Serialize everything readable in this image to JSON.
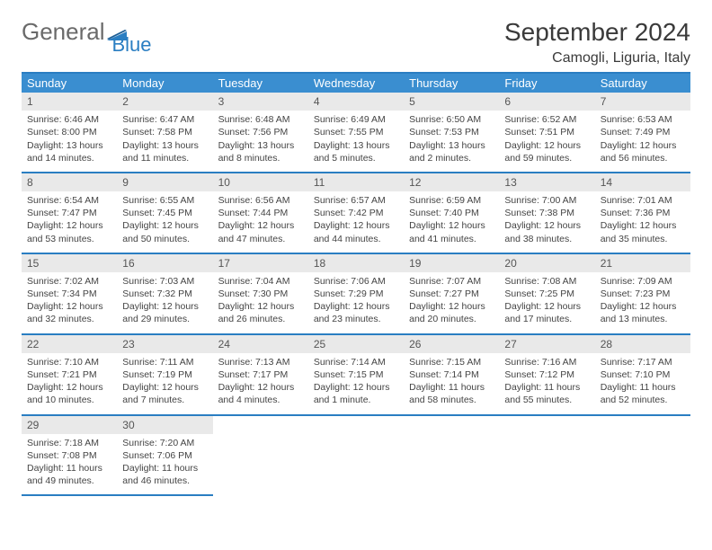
{
  "logo": {
    "text1": "General",
    "text2": "Blue"
  },
  "title": "September 2024",
  "location": "Camogli, Liguria, Italy",
  "colors": {
    "header_bg": "#3a8ed0",
    "header_border": "#2a7ec2",
    "daynum_bg": "#e9e9e9",
    "text": "#333333"
  },
  "dow": [
    "Sunday",
    "Monday",
    "Tuesday",
    "Wednesday",
    "Thursday",
    "Friday",
    "Saturday"
  ],
  "weeks": [
    [
      {
        "n": "1",
        "sr": "Sunrise: 6:46 AM",
        "ss": "Sunset: 8:00 PM",
        "dl": "Daylight: 13 hours and 14 minutes."
      },
      {
        "n": "2",
        "sr": "Sunrise: 6:47 AM",
        "ss": "Sunset: 7:58 PM",
        "dl": "Daylight: 13 hours and 11 minutes."
      },
      {
        "n": "3",
        "sr": "Sunrise: 6:48 AM",
        "ss": "Sunset: 7:56 PM",
        "dl": "Daylight: 13 hours and 8 minutes."
      },
      {
        "n": "4",
        "sr": "Sunrise: 6:49 AM",
        "ss": "Sunset: 7:55 PM",
        "dl": "Daylight: 13 hours and 5 minutes."
      },
      {
        "n": "5",
        "sr": "Sunrise: 6:50 AM",
        "ss": "Sunset: 7:53 PM",
        "dl": "Daylight: 13 hours and 2 minutes."
      },
      {
        "n": "6",
        "sr": "Sunrise: 6:52 AM",
        "ss": "Sunset: 7:51 PM",
        "dl": "Daylight: 12 hours and 59 minutes."
      },
      {
        "n": "7",
        "sr": "Sunrise: 6:53 AM",
        "ss": "Sunset: 7:49 PM",
        "dl": "Daylight: 12 hours and 56 minutes."
      }
    ],
    [
      {
        "n": "8",
        "sr": "Sunrise: 6:54 AM",
        "ss": "Sunset: 7:47 PM",
        "dl": "Daylight: 12 hours and 53 minutes."
      },
      {
        "n": "9",
        "sr": "Sunrise: 6:55 AM",
        "ss": "Sunset: 7:45 PM",
        "dl": "Daylight: 12 hours and 50 minutes."
      },
      {
        "n": "10",
        "sr": "Sunrise: 6:56 AM",
        "ss": "Sunset: 7:44 PM",
        "dl": "Daylight: 12 hours and 47 minutes."
      },
      {
        "n": "11",
        "sr": "Sunrise: 6:57 AM",
        "ss": "Sunset: 7:42 PM",
        "dl": "Daylight: 12 hours and 44 minutes."
      },
      {
        "n": "12",
        "sr": "Sunrise: 6:59 AM",
        "ss": "Sunset: 7:40 PM",
        "dl": "Daylight: 12 hours and 41 minutes."
      },
      {
        "n": "13",
        "sr": "Sunrise: 7:00 AM",
        "ss": "Sunset: 7:38 PM",
        "dl": "Daylight: 12 hours and 38 minutes."
      },
      {
        "n": "14",
        "sr": "Sunrise: 7:01 AM",
        "ss": "Sunset: 7:36 PM",
        "dl": "Daylight: 12 hours and 35 minutes."
      }
    ],
    [
      {
        "n": "15",
        "sr": "Sunrise: 7:02 AM",
        "ss": "Sunset: 7:34 PM",
        "dl": "Daylight: 12 hours and 32 minutes."
      },
      {
        "n": "16",
        "sr": "Sunrise: 7:03 AM",
        "ss": "Sunset: 7:32 PM",
        "dl": "Daylight: 12 hours and 29 minutes."
      },
      {
        "n": "17",
        "sr": "Sunrise: 7:04 AM",
        "ss": "Sunset: 7:30 PM",
        "dl": "Daylight: 12 hours and 26 minutes."
      },
      {
        "n": "18",
        "sr": "Sunrise: 7:06 AM",
        "ss": "Sunset: 7:29 PM",
        "dl": "Daylight: 12 hours and 23 minutes."
      },
      {
        "n": "19",
        "sr": "Sunrise: 7:07 AM",
        "ss": "Sunset: 7:27 PM",
        "dl": "Daylight: 12 hours and 20 minutes."
      },
      {
        "n": "20",
        "sr": "Sunrise: 7:08 AM",
        "ss": "Sunset: 7:25 PM",
        "dl": "Daylight: 12 hours and 17 minutes."
      },
      {
        "n": "21",
        "sr": "Sunrise: 7:09 AM",
        "ss": "Sunset: 7:23 PM",
        "dl": "Daylight: 12 hours and 13 minutes."
      }
    ],
    [
      {
        "n": "22",
        "sr": "Sunrise: 7:10 AM",
        "ss": "Sunset: 7:21 PM",
        "dl": "Daylight: 12 hours and 10 minutes."
      },
      {
        "n": "23",
        "sr": "Sunrise: 7:11 AM",
        "ss": "Sunset: 7:19 PM",
        "dl": "Daylight: 12 hours and 7 minutes."
      },
      {
        "n": "24",
        "sr": "Sunrise: 7:13 AM",
        "ss": "Sunset: 7:17 PM",
        "dl": "Daylight: 12 hours and 4 minutes."
      },
      {
        "n": "25",
        "sr": "Sunrise: 7:14 AM",
        "ss": "Sunset: 7:15 PM",
        "dl": "Daylight: 12 hours and 1 minute."
      },
      {
        "n": "26",
        "sr": "Sunrise: 7:15 AM",
        "ss": "Sunset: 7:14 PM",
        "dl": "Daylight: 11 hours and 58 minutes."
      },
      {
        "n": "27",
        "sr": "Sunrise: 7:16 AM",
        "ss": "Sunset: 7:12 PM",
        "dl": "Daylight: 11 hours and 55 minutes."
      },
      {
        "n": "28",
        "sr": "Sunrise: 7:17 AM",
        "ss": "Sunset: 7:10 PM",
        "dl": "Daylight: 11 hours and 52 minutes."
      }
    ],
    [
      {
        "n": "29",
        "sr": "Sunrise: 7:18 AM",
        "ss": "Sunset: 7:08 PM",
        "dl": "Daylight: 11 hours and 49 minutes."
      },
      {
        "n": "30",
        "sr": "Sunrise: 7:20 AM",
        "ss": "Sunset: 7:06 PM",
        "dl": "Daylight: 11 hours and 46 minutes."
      },
      null,
      null,
      null,
      null,
      null
    ]
  ]
}
